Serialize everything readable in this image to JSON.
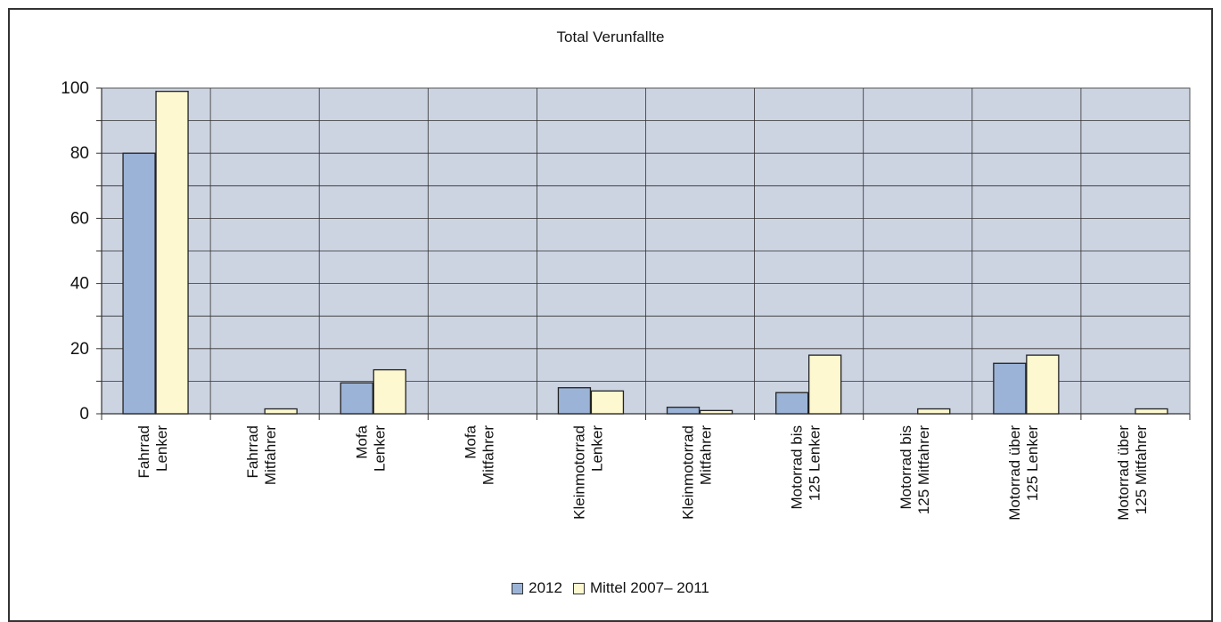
{
  "chart_data": {
    "type": "bar",
    "title": "Total Verunfallte",
    "categories": [
      [
        "Fahrrad",
        "Lenker"
      ],
      [
        "Fahrrad",
        "Mitfahrer"
      ],
      [
        "Mofa",
        "Lenker"
      ],
      [
        "Mofa",
        "Mitfahrer"
      ],
      [
        "Kleinmotorrad",
        "Lenker"
      ],
      [
        "Kleinmotorrad",
        "Mitfahrer"
      ],
      [
        "Motorrad bis",
        "125 Lenker"
      ],
      [
        "Motorrad bis",
        "125 Mitfahrer"
      ],
      [
        "Motorrad über",
        "125 Lenker"
      ],
      [
        "Motorrad über",
        "125 Mitfahrer"
      ]
    ],
    "series": [
      {
        "name": "2012",
        "color": "#9bb3d6",
        "values": [
          80,
          0,
          9.5,
          0,
          8,
          2,
          6.5,
          0,
          15.5,
          0
        ]
      },
      {
        "name": "Mittel 2007– 2011",
        "color": "#fdf8cf",
        "values": [
          99,
          1.5,
          13.5,
          0,
          7,
          1,
          18,
          1.5,
          18,
          1.5
        ]
      }
    ],
    "ylim": [
      0,
      100
    ],
    "yticks": [
      0,
      20,
      40,
      60,
      80,
      100
    ],
    "grid": true,
    "plot_background": "#ccd3e1",
    "legend_position": "bottom"
  }
}
